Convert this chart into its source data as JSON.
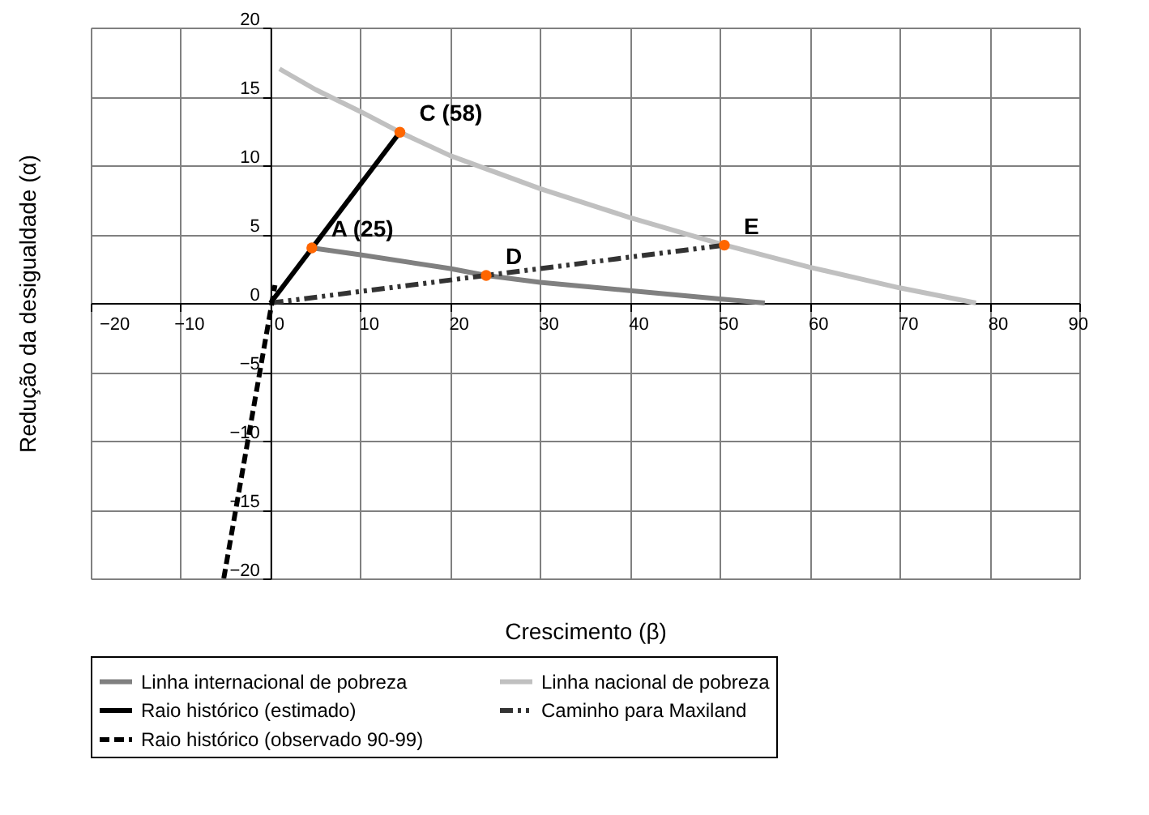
{
  "chart_data": {
    "type": "line",
    "xlabel": "Crescimento (β)",
    "ylabel": "Redução da desigualdade (α)",
    "xlim": [
      -20,
      90
    ],
    "ylim": [
      -20,
      20
    ],
    "xticks": [
      -20,
      -10,
      0,
      10,
      20,
      30,
      40,
      50,
      60,
      70,
      80,
      90
    ],
    "yticks": [
      -20,
      -15,
      -10,
      -5,
      0,
      5,
      10,
      15,
      20
    ],
    "grid": true,
    "legend": "bottom",
    "marker": "none",
    "series": [
      {
        "name": "Linha internacional de pobreza",
        "color": "#808080",
        "line_style": "solid",
        "x": [
          4.6,
          10,
          20,
          24,
          30,
          40,
          50,
          55
        ],
        "values": [
          4.0,
          3.5,
          2.5,
          2.0,
          1.5,
          0.9,
          0.3,
          0
        ]
      },
      {
        "name": "Linha nacional de pobreza",
        "color": "#c0c0c0",
        "line_style": "solid",
        "x": [
          1,
          5,
          10,
          14.4,
          20,
          30,
          40,
          50,
          60,
          70,
          78.5
        ],
        "values": [
          17,
          15.5,
          13.9,
          12.4,
          10.7,
          8.3,
          6.2,
          4.3,
          2.6,
          1.1,
          0
        ]
      },
      {
        "name": "Raio histórico (estimado)",
        "color": "#000000",
        "line_style": "solid",
        "x": [
          0,
          14.4
        ],
        "values": [
          0,
          12.4
        ]
      },
      {
        "name": "Caminho para Maxiland",
        "color": "#333333",
        "line_style": "dashdot",
        "x": [
          0,
          24,
          50.5
        ],
        "values": [
          0,
          2.0,
          4.2
        ]
      },
      {
        "name": "Raio histórico (observado 90-99)",
        "color": "#000000",
        "line_style": "dashed",
        "x": [
          -5.2,
          0.5
        ],
        "values": [
          -20,
          1.3
        ]
      },
      {
        "type": "scatter",
        "marker": "circle",
        "color": "#ff6600",
        "x": [
          4.6,
          14.4,
          24,
          50.5
        ],
        "values": [
          4.0,
          12.4,
          2.0,
          4.2
        ]
      }
    ],
    "annotations": [
      {
        "text": "A (25)",
        "x": 4.6,
        "y": 4.0
      },
      {
        "text": "C (58)",
        "x": 14.4,
        "y": 12.4
      },
      {
        "text": "D",
        "x": 24,
        "y": 2.0
      },
      {
        "text": "E",
        "x": 50.5,
        "y": 4.2
      }
    ]
  }
}
